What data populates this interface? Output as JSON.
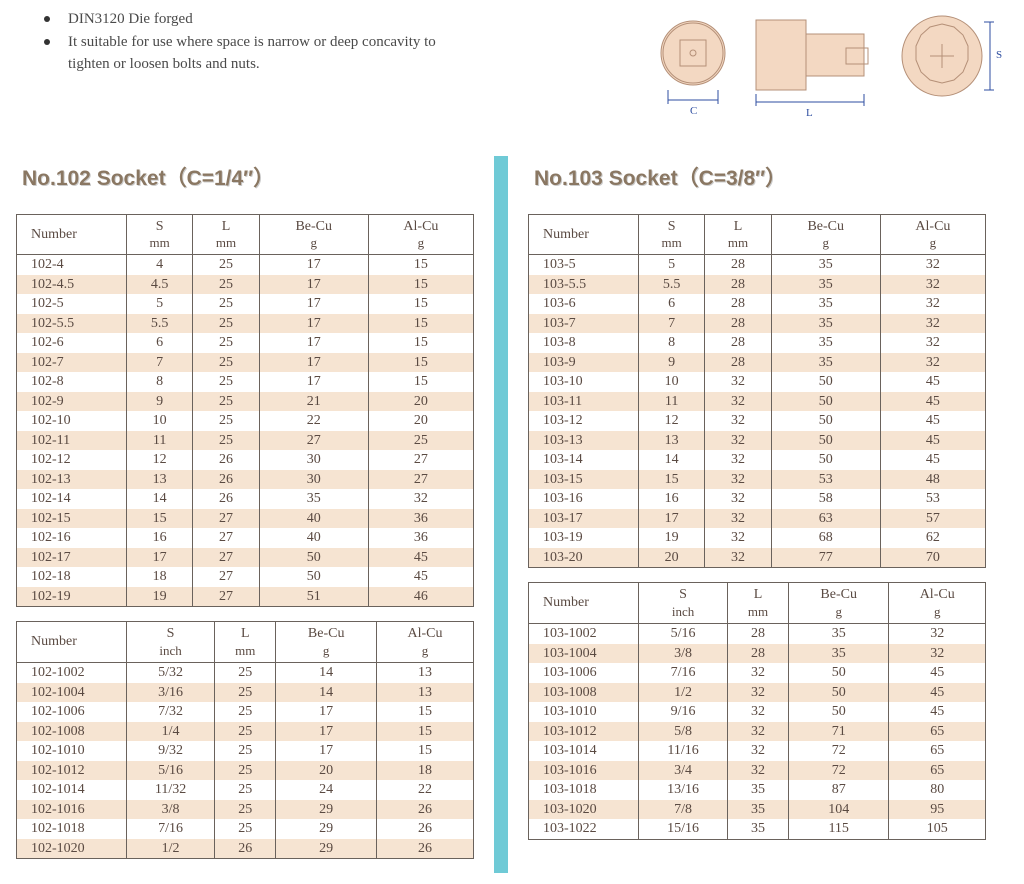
{
  "bullets": [
    "DIN3120   Die forged",
    "It suitable for use where space is narrow or deep concavity to tighten or loosen bolts and nuts."
  ],
  "diagram_labels": {
    "c": "C",
    "l": "L",
    "s": "S"
  },
  "colors": {
    "divider": "#6fcad6",
    "stripe": "#f6e4d2",
    "border": "#6a625c",
    "text": "#5a4a42",
    "title": "#8a7762",
    "diagram_fill": "#f3d8c2"
  },
  "left": {
    "title": "No.102 Socket（C=1/4″）",
    "table1": {
      "headers": [
        {
          "label": "Number",
          "unit": ""
        },
        {
          "label": "S",
          "unit": "mm"
        },
        {
          "label": "L",
          "unit": "mm"
        },
        {
          "label": "Be-Cu",
          "unit": "g"
        },
        {
          "label": "Al-Cu",
          "unit": "g"
        }
      ],
      "rows": [
        [
          "102-4",
          "4",
          "25",
          "17",
          "15"
        ],
        [
          "102-4.5",
          "4.5",
          "25",
          "17",
          "15"
        ],
        [
          "102-5",
          "5",
          "25",
          "17",
          "15"
        ],
        [
          "102-5.5",
          "5.5",
          "25",
          "17",
          "15"
        ],
        [
          "102-6",
          "6",
          "25",
          "17",
          "15"
        ],
        [
          "102-7",
          "7",
          "25",
          "17",
          "15"
        ],
        [
          "102-8",
          "8",
          "25",
          "17",
          "15"
        ],
        [
          "102-9",
          "9",
          "25",
          "21",
          "20"
        ],
        [
          "102-10",
          "10",
          "25",
          "22",
          "20"
        ],
        [
          "102-11",
          "11",
          "25",
          "27",
          "25"
        ],
        [
          "102-12",
          "12",
          "26",
          "30",
          "27"
        ],
        [
          "102-13",
          "13",
          "26",
          "30",
          "27"
        ],
        [
          "102-14",
          "14",
          "26",
          "35",
          "32"
        ],
        [
          "102-15",
          "15",
          "27",
          "40",
          "36"
        ],
        [
          "102-16",
          "16",
          "27",
          "40",
          "36"
        ],
        [
          "102-17",
          "17",
          "27",
          "50",
          "45"
        ],
        [
          "102-18",
          "18",
          "27",
          "50",
          "45"
        ],
        [
          "102-19",
          "19",
          "27",
          "51",
          "46"
        ]
      ]
    },
    "table2": {
      "headers": [
        {
          "label": "Number",
          "unit": ""
        },
        {
          "label": "S",
          "unit": "inch"
        },
        {
          "label": "L",
          "unit": "mm"
        },
        {
          "label": "Be-Cu",
          "unit": "g"
        },
        {
          "label": "Al-Cu",
          "unit": "g"
        }
      ],
      "rows": [
        [
          "102-1002",
          "5/32",
          "25",
          "14",
          "13"
        ],
        [
          "102-1004",
          "3/16",
          "25",
          "14",
          "13"
        ],
        [
          "102-1006",
          "7/32",
          "25",
          "17",
          "15"
        ],
        [
          "102-1008",
          "1/4",
          "25",
          "17",
          "15"
        ],
        [
          "102-1010",
          "9/32",
          "25",
          "17",
          "15"
        ],
        [
          "102-1012",
          "5/16",
          "25",
          "20",
          "18"
        ],
        [
          "102-1014",
          "11/32",
          "25",
          "24",
          "22"
        ],
        [
          "102-1016",
          "3/8",
          "25",
          "29",
          "26"
        ],
        [
          "102-1018",
          "7/16",
          "25",
          "29",
          "26"
        ],
        [
          "102-1020",
          "1/2",
          "26",
          "29",
          "26"
        ]
      ]
    }
  },
  "right": {
    "title": "No.103 Socket（C=3/8″）",
    "table1": {
      "headers": [
        {
          "label": "Number",
          "unit": ""
        },
        {
          "label": "S",
          "unit": "mm"
        },
        {
          "label": "L",
          "unit": "mm"
        },
        {
          "label": "Be-Cu",
          "unit": "g"
        },
        {
          "label": "Al-Cu",
          "unit": "g"
        }
      ],
      "rows": [
        [
          "103-5",
          "5",
          "28",
          "35",
          "32"
        ],
        [
          "103-5.5",
          "5.5",
          "28",
          "35",
          "32"
        ],
        [
          "103-6",
          "6",
          "28",
          "35",
          "32"
        ],
        [
          "103-7",
          "7",
          "28",
          "35",
          "32"
        ],
        [
          "103-8",
          "8",
          "28",
          "35",
          "32"
        ],
        [
          "103-9",
          "9",
          "28",
          "35",
          "32"
        ],
        [
          "103-10",
          "10",
          "32",
          "50",
          "45"
        ],
        [
          "103-11",
          "11",
          "32",
          "50",
          "45"
        ],
        [
          "103-12",
          "12",
          "32",
          "50",
          "45"
        ],
        [
          "103-13",
          "13",
          "32",
          "50",
          "45"
        ],
        [
          "103-14",
          "14",
          "32",
          "50",
          "45"
        ],
        [
          "103-15",
          "15",
          "32",
          "53",
          "48"
        ],
        [
          "103-16",
          "16",
          "32",
          "58",
          "53"
        ],
        [
          "103-17",
          "17",
          "32",
          "63",
          "57"
        ],
        [
          "103-19",
          "19",
          "32",
          "68",
          "62"
        ],
        [
          "103-20",
          "20",
          "32",
          "77",
          "70"
        ]
      ]
    },
    "table2": {
      "headers": [
        {
          "label": "Number",
          "unit": ""
        },
        {
          "label": "S",
          "unit": "inch"
        },
        {
          "label": "L",
          "unit": "mm"
        },
        {
          "label": "Be-Cu",
          "unit": "g"
        },
        {
          "label": "Al-Cu",
          "unit": "g"
        }
      ],
      "rows": [
        [
          "103-1002",
          "5/16",
          "28",
          "35",
          "32"
        ],
        [
          "103-1004",
          "3/8",
          "28",
          "35",
          "32"
        ],
        [
          "103-1006",
          "7/16",
          "32",
          "50",
          "45"
        ],
        [
          "103-1008",
          "1/2",
          "32",
          "50",
          "45"
        ],
        [
          "103-1010",
          "9/16",
          "32",
          "50",
          "45"
        ],
        [
          "103-1012",
          "5/8",
          "32",
          "71",
          "65"
        ],
        [
          "103-1014",
          "11/16",
          "32",
          "72",
          "65"
        ],
        [
          "103-1016",
          "3/4",
          "32",
          "72",
          "65"
        ],
        [
          "103-1018",
          "13/16",
          "35",
          "87",
          "80"
        ],
        [
          "103-1020",
          "7/8",
          "35",
          "104",
          "95"
        ],
        [
          "103-1022",
          "15/16",
          "35",
          "115",
          "105"
        ]
      ]
    }
  }
}
